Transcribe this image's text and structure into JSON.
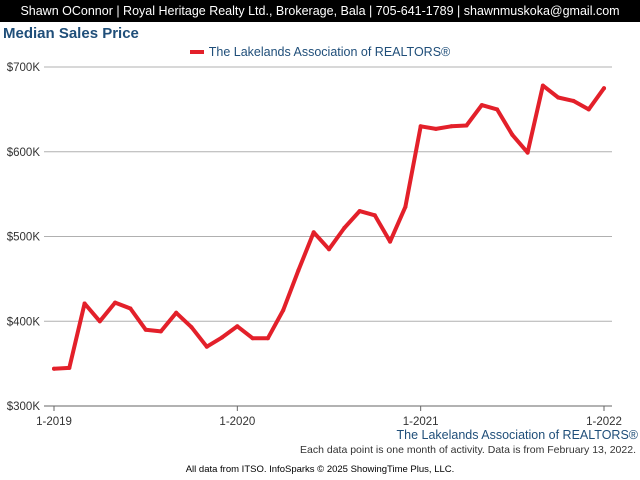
{
  "header": {
    "agent_line": "Shawn OConnor | Royal Heritage Realty Ltd., Brokerage, Bala | 705-641-1789 | shawnmuskoka@gmail.com"
  },
  "chart_data": {
    "type": "line",
    "title": "Median Sales Price",
    "xlabel": "",
    "ylabel": "",
    "ylim": [
      300000,
      700000
    ],
    "y_ticks": [
      {
        "value": 700000,
        "label": "$700K"
      },
      {
        "value": 600000,
        "label": "$600K"
      },
      {
        "value": 500000,
        "label": "$500K"
      },
      {
        "value": 400000,
        "label": "$400K"
      },
      {
        "value": 300000,
        "label": "$300K"
      }
    ],
    "x_ticks": [
      {
        "index": 0,
        "label": "1-2019"
      },
      {
        "index": 12,
        "label": "1-2020"
      },
      {
        "index": 24,
        "label": "1-2021"
      },
      {
        "index": 36,
        "label": "1-2022"
      }
    ],
    "legend_position": "top-center",
    "grid": true,
    "colors": {
      "series": "#e3202a",
      "title": "#1f4e79",
      "grid": "#b0b0b0"
    },
    "series": [
      {
        "name": "The Lakelands Association of REALTORS®",
        "x": [
          "1-2019",
          "2-2019",
          "3-2019",
          "4-2019",
          "5-2019",
          "6-2019",
          "7-2019",
          "8-2019",
          "9-2019",
          "10-2019",
          "11-2019",
          "12-2019",
          "1-2020",
          "2-2020",
          "3-2020",
          "4-2020",
          "5-2020",
          "6-2020",
          "7-2020",
          "8-2020",
          "9-2020",
          "10-2020",
          "11-2020",
          "12-2020",
          "1-2021",
          "2-2021",
          "3-2021",
          "4-2021",
          "5-2021",
          "6-2021",
          "7-2021",
          "8-2021",
          "9-2021",
          "10-2021",
          "11-2021",
          "12-2021",
          "1-2022"
        ],
        "values": [
          344000,
          345000,
          421000,
          400000,
          422000,
          415000,
          390000,
          388000,
          410000,
          393000,
          370000,
          381000,
          394000,
          380000,
          380000,
          413000,
          460000,
          505000,
          485000,
          510000,
          530000,
          525000,
          494000,
          535000,
          630000,
          627000,
          630000,
          631000,
          655000,
          650000,
          620000,
          599000,
          678000,
          664000,
          660000,
          650000,
          675000
        ]
      }
    ]
  },
  "source": {
    "organization": "The Lakelands Association of REALTORS®",
    "note": "Each data point is one month of activity. Data is from February 13, 2022."
  },
  "footer": {
    "text": "All data from ITSO. InfoSparks © 2025 ShowingTime Plus, LLC."
  }
}
